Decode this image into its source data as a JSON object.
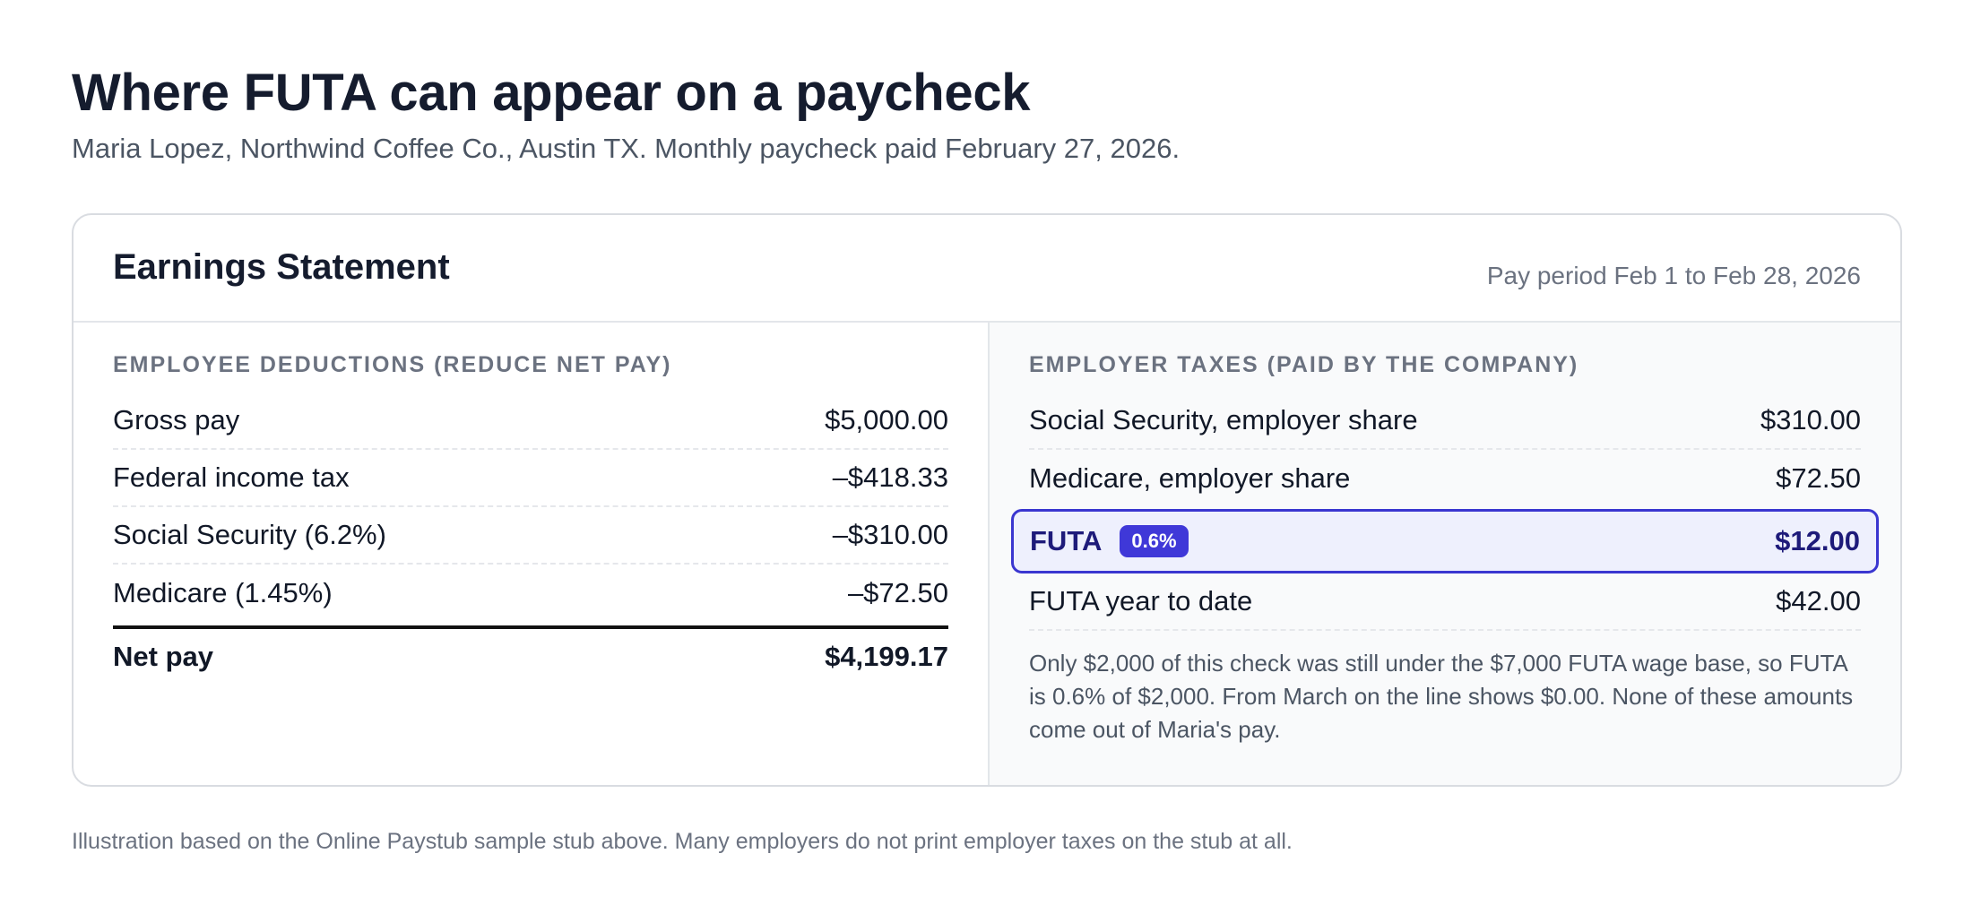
{
  "header": {
    "title": "Where FUTA can appear on a paycheck",
    "subtitle": "Maria Lopez, Northwind Coffee Co., Austin TX. Monthly paycheck paid February 27, 2026."
  },
  "statement": {
    "title": "Earnings Statement",
    "pay_period": "Pay period Feb 1 to Feb 28, 2026",
    "employee": {
      "heading": "EMPLOYEE DEDUCTIONS (REDUCE NET PAY)",
      "rows": [
        {
          "label": "Gross pay",
          "value": "$5,000.00"
        },
        {
          "label": "Federal income tax",
          "value": "–$418.33"
        },
        {
          "label": "Social Security (6.2%)",
          "value": "–$310.00"
        },
        {
          "label": "Medicare (1.45%)",
          "value": "–$72.50"
        }
      ],
      "total": {
        "label": "Net pay",
        "value": "$4,199.17"
      }
    },
    "employer": {
      "heading": "EMPLOYER TAXES (PAID BY THE COMPANY)",
      "rows": [
        {
          "label": "Social Security, employer share",
          "value": "$310.00"
        },
        {
          "label": "Medicare, employer share",
          "value": "$72.50"
        }
      ],
      "futa": {
        "label": "FUTA",
        "badge": "0.6%",
        "value": "$12.00"
      },
      "ytd": {
        "label": "FUTA year to date",
        "value": "$42.00"
      },
      "note": "Only $2,000 of this check was still under the $7,000 FUTA wage base, so FUTA is 0.6% of $2,000. From March on the line shows $0.00. None of these amounts come out of Maria's pay."
    }
  },
  "footnote": "Illustration based on the Online Paystub sample stub above. Many employers do not print employer taxes on the stub at all.",
  "colors": {
    "accent": "#3f38d8",
    "highlight_bg": "#eef0fd",
    "highlight_text": "#1e1b7a"
  }
}
